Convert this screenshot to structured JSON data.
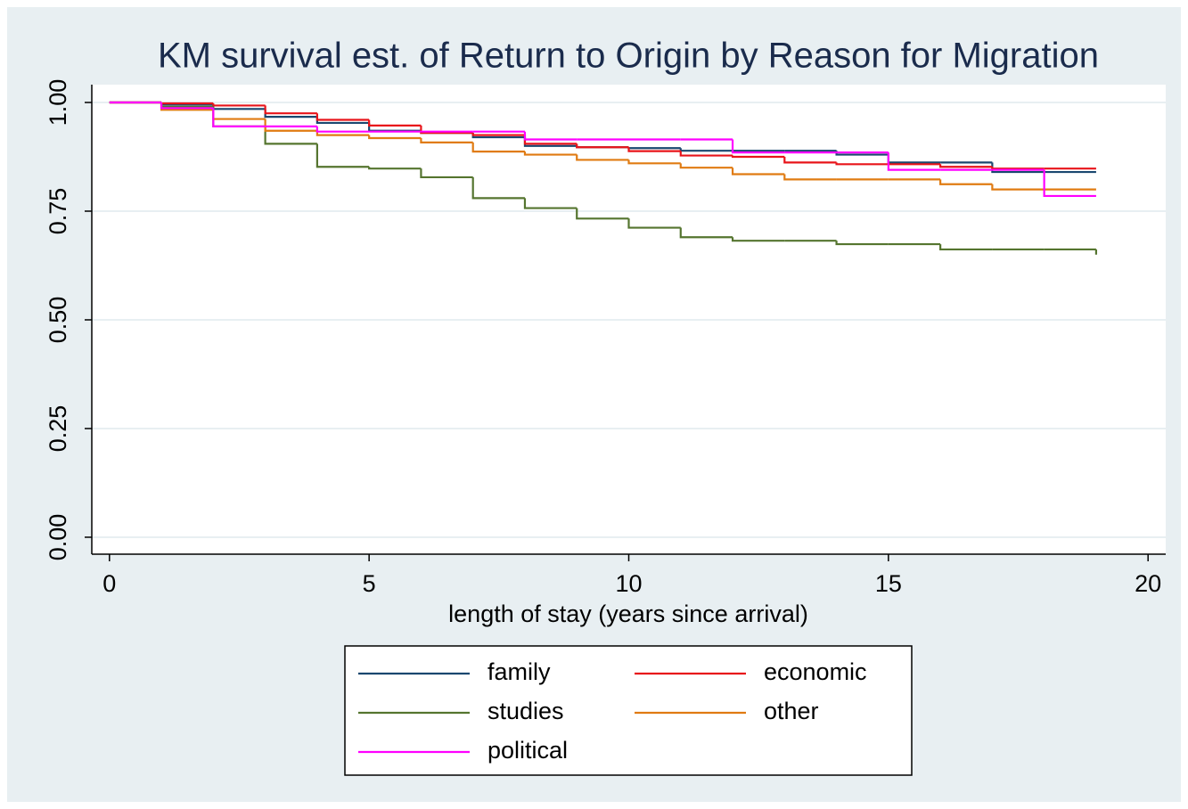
{
  "chart_data": {
    "type": "step",
    "title": "KM survival est. of Return to Origin by Reason for Migration",
    "x_label": "length of stay (years since arrival)",
    "x": [
      0,
      1,
      2,
      3,
      4,
      5,
      6,
      7,
      8,
      9,
      10,
      11,
      12,
      13,
      14,
      15,
      16,
      17,
      18,
      19
    ],
    "series": [
      {
        "name": "family",
        "color": "#1a476f",
        "values": [
          1.0,
          0.995,
          0.985,
          0.967,
          0.953,
          0.935,
          0.93,
          0.92,
          0.9,
          0.897,
          0.895,
          0.889,
          0.889,
          0.889,
          0.88,
          0.862,
          0.862,
          0.84,
          0.84,
          0.84
        ]
      },
      {
        "name": "economic",
        "color": "#e8141a",
        "values": [
          1.0,
          0.998,
          0.993,
          0.975,
          0.96,
          0.947,
          0.93,
          0.925,
          0.905,
          0.897,
          0.888,
          0.878,
          0.875,
          0.862,
          0.858,
          0.858,
          0.852,
          0.848,
          0.848,
          0.848
        ]
      },
      {
        "name": "studies",
        "color": "#55752f",
        "values": [
          1.0,
          0.99,
          0.945,
          0.905,
          0.852,
          0.848,
          0.828,
          0.78,
          0.757,
          0.733,
          0.712,
          0.69,
          0.682,
          0.682,
          0.674,
          0.674,
          0.662,
          0.662,
          0.662,
          0.65
        ]
      },
      {
        "name": "other",
        "color": "#e07b12",
        "values": [
          1.0,
          0.983,
          0.962,
          0.935,
          0.925,
          0.918,
          0.908,
          0.887,
          0.88,
          0.868,
          0.86,
          0.85,
          0.835,
          0.823,
          0.823,
          0.823,
          0.812,
          0.8,
          0.8,
          0.8
        ]
      },
      {
        "name": "political",
        "color": "#ff00ff",
        "values": [
          1.0,
          0.987,
          0.945,
          0.945,
          0.933,
          0.933,
          0.933,
          0.933,
          0.915,
          0.915,
          0.915,
          0.915,
          0.885,
          0.885,
          0.885,
          0.845,
          0.845,
          0.845,
          0.785,
          0.785
        ]
      }
    ],
    "xlim": [
      -0.34,
      20.34
    ],
    "ylim": [
      -0.039,
      1.041
    ],
    "xticks": [
      0,
      5,
      10,
      15,
      20
    ],
    "yticks": [
      {
        "value": 0,
        "label": "0.00"
      },
      {
        "value": 0.25,
        "label": "0.25"
      },
      {
        "value": 0.5,
        "label": "0.50"
      },
      {
        "value": 0.75,
        "label": "0.75"
      },
      {
        "value": 1,
        "label": "1.00"
      }
    ],
    "grid": true
  }
}
